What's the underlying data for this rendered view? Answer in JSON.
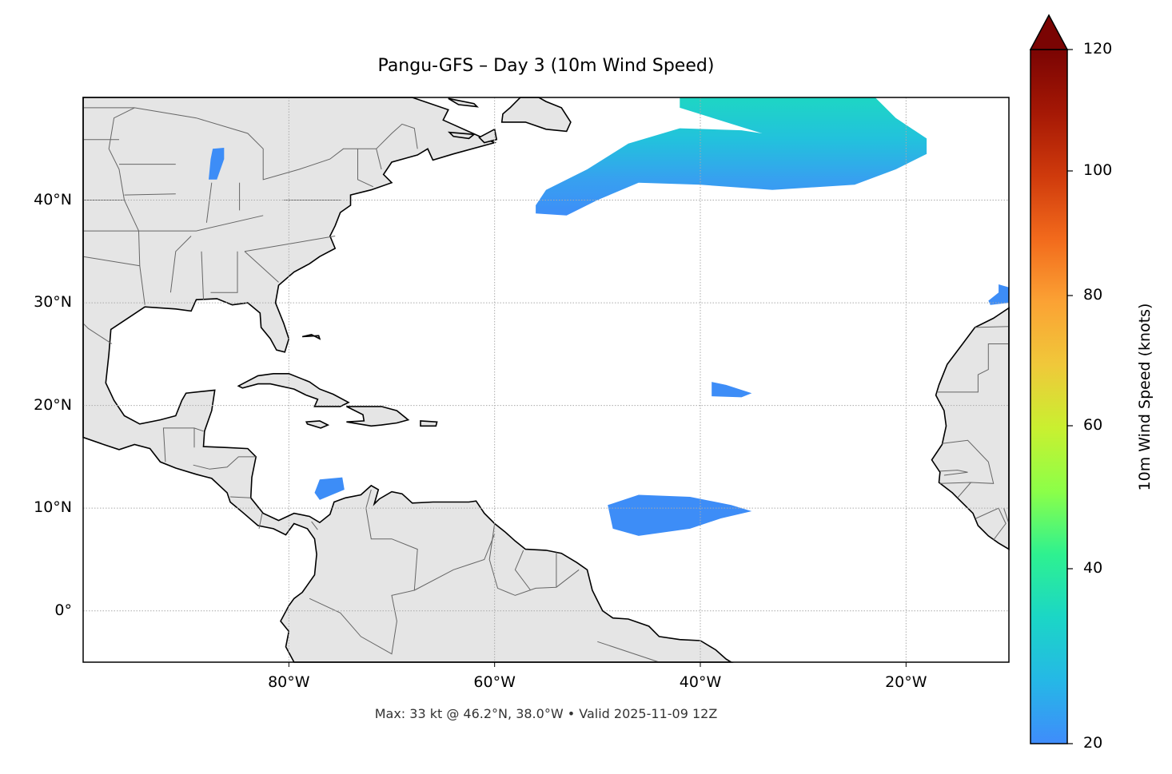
{
  "title": "Pangu-GFS – Day 3 (10m Wind Speed)",
  "footer": "Max: 33 kt @ 46.2°N, 38.0°W • Valid 2025-11-09 12Z",
  "map": {
    "projection": "PlateCarree",
    "extent": {
      "lon_min": -100,
      "lon_max": -10,
      "lat_min": -5,
      "lat_max": 50
    },
    "lon_ticks": [
      {
        "value": -80,
        "label": "80°W"
      },
      {
        "value": -60,
        "label": "60°W"
      },
      {
        "value": -40,
        "label": "40°W"
      },
      {
        "value": -20,
        "label": "20°W"
      }
    ],
    "lat_ticks": [
      {
        "value": 40,
        "label": "40°N"
      },
      {
        "value": 30,
        "label": "30°N"
      },
      {
        "value": 20,
        "label": "20°N"
      },
      {
        "value": 10,
        "label": "10°N"
      },
      {
        "value": 0,
        "label": "0°"
      }
    ],
    "gridlines": true,
    "land_color": "#e5e5e5",
    "coast_color": "#000000",
    "border_color": "#666666",
    "wind_regions": [
      {
        "name": "north-atlantic-jet",
        "max_kt": 33,
        "polygon": [
          [
            -56,
            39.5
          ],
          [
            -55,
            41
          ],
          [
            -51,
            43
          ],
          [
            -47,
            45.5
          ],
          [
            -42,
            47
          ],
          [
            -36,
            46.8
          ],
          [
            -34,
            46.5
          ],
          [
            -42,
            49
          ],
          [
            -42,
            50
          ],
          [
            -23,
            50
          ],
          [
            -21,
            48
          ],
          [
            -18,
            46
          ],
          [
            -18,
            44.5
          ],
          [
            -21,
            43
          ],
          [
            -25,
            41.5
          ],
          [
            -33,
            41
          ],
          [
            -40,
            41.5
          ],
          [
            -46,
            41.7
          ],
          [
            -50,
            40
          ],
          [
            -53,
            38.5
          ],
          [
            -56,
            38.7
          ]
        ]
      },
      {
        "name": "itcz-blob",
        "max_kt": 22,
        "polygon": [
          [
            -49,
            10.3
          ],
          [
            -46,
            11.3
          ],
          [
            -41,
            11.1
          ],
          [
            -37,
            10.3
          ],
          [
            -35,
            9.7
          ],
          [
            -38,
            9
          ],
          [
            -41,
            8
          ],
          [
            -46,
            7.3
          ],
          [
            -48.5,
            8
          ]
        ]
      },
      {
        "name": "subtropical-blob",
        "max_kt": 21,
        "polygon": [
          [
            -38.9,
            22.3
          ],
          [
            -37.5,
            22
          ],
          [
            -35,
            21.2
          ],
          [
            -36,
            20.8
          ],
          [
            -38.9,
            20.9
          ]
        ]
      },
      {
        "name": "caribbean-blob",
        "max_kt": 21,
        "polygon": [
          [
            -77,
            12.8
          ],
          [
            -74.8,
            13
          ],
          [
            -74.6,
            11.8
          ],
          [
            -77,
            10.8
          ],
          [
            -77.5,
            11.5
          ]
        ]
      },
      {
        "name": "canary-blob",
        "max_kt": 21,
        "polygon": [
          [
            -12,
            30.2
          ],
          [
            -11,
            31
          ],
          [
            -11,
            31.8
          ],
          [
            -10,
            31.5
          ],
          [
            -10,
            30
          ],
          [
            -11.8,
            29.8
          ]
        ]
      },
      {
        "name": "lake-michigan",
        "max_kt": 24,
        "polygon": [
          [
            -87.8,
            42
          ],
          [
            -87,
            42
          ],
          [
            -86.3,
            44
          ],
          [
            -86.3,
            45.1
          ],
          [
            -87.4,
            45
          ],
          [
            -87.6,
            44
          ]
        ]
      }
    ]
  },
  "colorbar": {
    "label": "10m Wind Speed (knots)",
    "min": 20,
    "max": 120,
    "extend": "max",
    "ticks": [
      {
        "value": 20,
        "label": "20"
      },
      {
        "value": 40,
        "label": "40"
      },
      {
        "value": 60,
        "label": "60"
      },
      {
        "value": 80,
        "label": "80"
      },
      {
        "value": 100,
        "label": "100"
      },
      {
        "value": 120,
        "label": "120"
      }
    ],
    "colors": [
      "#3f8cfb",
      "#25b8e6",
      "#1bd6c6",
      "#2ef190",
      "#8cff48",
      "#c9f030",
      "#f0c83a",
      "#fba234",
      "#f26a1c",
      "#cf3a0c",
      "#a51805",
      "#7a0403"
    ]
  }
}
